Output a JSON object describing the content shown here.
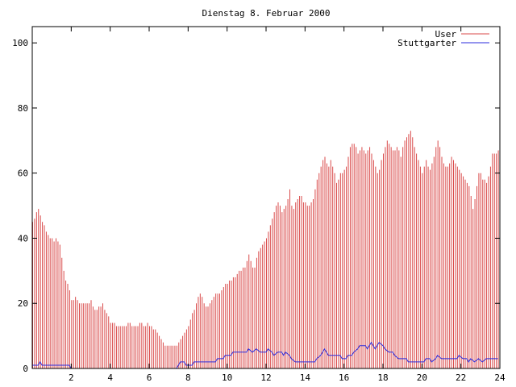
{
  "chart_data": {
    "type": "bar",
    "title": "Dienstag 8. Februar 2000",
    "xlabel": "",
    "ylabel": "",
    "xlim": [
      0,
      24
    ],
    "ylim": [
      0,
      105
    ],
    "x_ticks": [
      2,
      4,
      6,
      8,
      10,
      12,
      14,
      16,
      18,
      20,
      22,
      24
    ],
    "y_ticks": [
      0,
      20,
      40,
      60,
      80,
      100
    ],
    "grid": false,
    "legend_position": "top-right",
    "series": [
      {
        "name": "User",
        "type": "bar",
        "color": "#d94a4a",
        "points": [
          [
            0.0,
            45
          ],
          [
            0.1,
            46
          ],
          [
            0.2,
            48
          ],
          [
            0.3,
            49
          ],
          [
            0.4,
            47
          ],
          [
            0.5,
            45
          ],
          [
            0.6,
            44
          ],
          [
            0.7,
            42
          ],
          [
            0.8,
            41
          ],
          [
            0.9,
            40
          ],
          [
            1.0,
            40
          ],
          [
            1.1,
            39
          ],
          [
            1.2,
            40
          ],
          [
            1.3,
            39
          ],
          [
            1.4,
            38
          ],
          [
            1.5,
            34
          ],
          [
            1.6,
            30
          ],
          [
            1.7,
            27
          ],
          [
            1.8,
            26
          ],
          [
            1.9,
            24
          ],
          [
            2.0,
            21
          ],
          [
            2.1,
            21
          ],
          [
            2.2,
            22
          ],
          [
            2.3,
            21
          ],
          [
            2.4,
            20
          ],
          [
            2.5,
            20
          ],
          [
            2.6,
            20
          ],
          [
            2.7,
            20
          ],
          [
            2.8,
            20
          ],
          [
            2.9,
            20
          ],
          [
            3.0,
            21
          ],
          [
            3.1,
            19
          ],
          [
            3.2,
            18
          ],
          [
            3.3,
            18
          ],
          [
            3.4,
            19
          ],
          [
            3.5,
            19
          ],
          [
            3.6,
            20
          ],
          [
            3.7,
            18
          ],
          [
            3.8,
            17
          ],
          [
            3.9,
            16
          ],
          [
            4.0,
            14
          ],
          [
            4.1,
            14
          ],
          [
            4.2,
            14
          ],
          [
            4.3,
            13
          ],
          [
            4.4,
            13
          ],
          [
            4.5,
            13
          ],
          [
            4.6,
            13
          ],
          [
            4.7,
            13
          ],
          [
            4.8,
            13
          ],
          [
            4.9,
            14
          ],
          [
            5.0,
            14
          ],
          [
            5.1,
            13
          ],
          [
            5.2,
            13
          ],
          [
            5.3,
            13
          ],
          [
            5.4,
            13
          ],
          [
            5.5,
            14
          ],
          [
            5.6,
            14
          ],
          [
            5.7,
            13
          ],
          [
            5.8,
            13
          ],
          [
            5.9,
            14
          ],
          [
            6.0,
            13
          ],
          [
            6.1,
            13
          ],
          [
            6.2,
            12
          ],
          [
            6.3,
            12
          ],
          [
            6.4,
            11
          ],
          [
            6.5,
            10
          ],
          [
            6.6,
            9
          ],
          [
            6.7,
            8
          ],
          [
            6.8,
            7
          ],
          [
            6.9,
            7
          ],
          [
            7.0,
            7
          ],
          [
            7.1,
            7
          ],
          [
            7.2,
            7
          ],
          [
            7.3,
            7
          ],
          [
            7.4,
            7
          ],
          [
            7.5,
            8
          ],
          [
            7.6,
            9
          ],
          [
            7.7,
            10
          ],
          [
            7.8,
            11
          ],
          [
            7.9,
            12
          ],
          [
            8.0,
            13
          ],
          [
            8.1,
            15
          ],
          [
            8.2,
            17
          ],
          [
            8.3,
            18
          ],
          [
            8.4,
            20
          ],
          [
            8.5,
            22
          ],
          [
            8.6,
            23
          ],
          [
            8.7,
            22
          ],
          [
            8.8,
            20
          ],
          [
            8.9,
            19
          ],
          [
            9.0,
            19
          ],
          [
            9.1,
            20
          ],
          [
            9.2,
            21
          ],
          [
            9.3,
            22
          ],
          [
            9.4,
            23
          ],
          [
            9.5,
            23
          ],
          [
            9.6,
            23
          ],
          [
            9.7,
            24
          ],
          [
            9.8,
            25
          ],
          [
            9.9,
            26
          ],
          [
            10.0,
            26
          ],
          [
            10.1,
            27
          ],
          [
            10.2,
            27
          ],
          [
            10.3,
            28
          ],
          [
            10.4,
            28
          ],
          [
            10.5,
            29
          ],
          [
            10.6,
            30
          ],
          [
            10.7,
            30
          ],
          [
            10.8,
            31
          ],
          [
            10.9,
            31
          ],
          [
            11.0,
            33
          ],
          [
            11.1,
            35
          ],
          [
            11.2,
            33
          ],
          [
            11.3,
            31
          ],
          [
            11.4,
            31
          ],
          [
            11.5,
            34
          ],
          [
            11.6,
            36
          ],
          [
            11.7,
            37
          ],
          [
            11.8,
            38
          ],
          [
            11.9,
            39
          ],
          [
            12.0,
            40
          ],
          [
            12.1,
            42
          ],
          [
            12.2,
            44
          ],
          [
            12.3,
            46
          ],
          [
            12.4,
            48
          ],
          [
            12.5,
            50
          ],
          [
            12.6,
            51
          ],
          [
            12.7,
            50
          ],
          [
            12.8,
            48
          ],
          [
            12.9,
            49
          ],
          [
            13.0,
            50
          ],
          [
            13.1,
            52
          ],
          [
            13.2,
            55
          ],
          [
            13.3,
            50
          ],
          [
            13.4,
            49
          ],
          [
            13.5,
            51
          ],
          [
            13.6,
            52
          ],
          [
            13.7,
            53
          ],
          [
            13.8,
            53
          ],
          [
            13.9,
            51
          ],
          [
            14.0,
            51
          ],
          [
            14.1,
            50
          ],
          [
            14.2,
            50
          ],
          [
            14.3,
            51
          ],
          [
            14.4,
            52
          ],
          [
            14.5,
            55
          ],
          [
            14.6,
            58
          ],
          [
            14.7,
            60
          ],
          [
            14.8,
            62
          ],
          [
            14.9,
            64
          ],
          [
            15.0,
            65
          ],
          [
            15.1,
            63
          ],
          [
            15.2,
            62
          ],
          [
            15.3,
            64
          ],
          [
            15.4,
            62
          ],
          [
            15.5,
            60
          ],
          [
            15.6,
            57
          ],
          [
            15.7,
            58
          ],
          [
            15.8,
            60
          ],
          [
            15.9,
            60
          ],
          [
            16.0,
            61
          ],
          [
            16.1,
            62
          ],
          [
            16.2,
            65
          ],
          [
            16.3,
            68
          ],
          [
            16.4,
            69
          ],
          [
            16.5,
            69
          ],
          [
            16.6,
            68
          ],
          [
            16.7,
            66
          ],
          [
            16.8,
            67
          ],
          [
            16.9,
            68
          ],
          [
            17.0,
            67
          ],
          [
            17.1,
            66
          ],
          [
            17.2,
            67
          ],
          [
            17.3,
            68
          ],
          [
            17.4,
            66
          ],
          [
            17.5,
            64
          ],
          [
            17.6,
            62
          ],
          [
            17.7,
            60
          ],
          [
            17.8,
            61
          ],
          [
            17.9,
            64
          ],
          [
            18.0,
            66
          ],
          [
            18.1,
            68
          ],
          [
            18.2,
            70
          ],
          [
            18.3,
            69
          ],
          [
            18.4,
            68
          ],
          [
            18.5,
            67
          ],
          [
            18.6,
            67
          ],
          [
            18.7,
            68
          ],
          [
            18.8,
            67
          ],
          [
            18.9,
            65
          ],
          [
            19.0,
            68
          ],
          [
            19.1,
            70
          ],
          [
            19.2,
            71
          ],
          [
            19.3,
            72
          ],
          [
            19.4,
            73
          ],
          [
            19.5,
            71
          ],
          [
            19.6,
            68
          ],
          [
            19.7,
            66
          ],
          [
            19.8,
            64
          ],
          [
            19.9,
            62
          ],
          [
            20.0,
            60
          ],
          [
            20.1,
            62
          ],
          [
            20.2,
            64
          ],
          [
            20.3,
            62
          ],
          [
            20.4,
            61
          ],
          [
            20.5,
            63
          ],
          [
            20.6,
            65
          ],
          [
            20.7,
            68
          ],
          [
            20.8,
            70
          ],
          [
            20.9,
            68
          ],
          [
            21.0,
            65
          ],
          [
            21.1,
            63
          ],
          [
            21.2,
            62
          ],
          [
            21.3,
            62
          ],
          [
            21.4,
            63
          ],
          [
            21.5,
            65
          ],
          [
            21.6,
            64
          ],
          [
            21.7,
            63
          ],
          [
            21.8,
            62
          ],
          [
            21.9,
            61
          ],
          [
            22.0,
            60
          ],
          [
            22.1,
            59
          ],
          [
            22.2,
            58
          ],
          [
            22.3,
            57
          ],
          [
            22.4,
            56
          ],
          [
            22.5,
            53
          ],
          [
            22.6,
            49
          ],
          [
            22.7,
            52
          ],
          [
            22.8,
            56
          ],
          [
            22.9,
            60
          ],
          [
            23.0,
            60
          ],
          [
            23.1,
            58
          ],
          [
            23.2,
            58
          ],
          [
            23.3,
            57
          ],
          [
            23.4,
            59
          ],
          [
            23.5,
            62
          ],
          [
            23.6,
            66
          ],
          [
            23.7,
            66
          ],
          [
            23.8,
            66
          ],
          [
            23.9,
            67
          ]
        ]
      },
      {
        "name": "Stuttgarter",
        "type": "line",
        "color": "#2b2bdd",
        "points": [
          [
            0.0,
            1
          ],
          [
            0.3,
            1
          ],
          [
            0.4,
            2
          ],
          [
            0.5,
            1
          ],
          [
            1.0,
            1
          ],
          [
            1.9,
            1
          ],
          [
            2.0,
            0
          ],
          [
            7.4,
            0
          ],
          [
            7.5,
            1
          ],
          [
            7.6,
            2
          ],
          [
            7.8,
            2
          ],
          [
            7.9,
            1
          ],
          [
            8.2,
            1
          ],
          [
            8.3,
            2
          ],
          [
            9.4,
            2
          ],
          [
            9.5,
            3
          ],
          [
            9.8,
            3
          ],
          [
            9.9,
            4
          ],
          [
            10.2,
            4
          ],
          [
            10.3,
            5
          ],
          [
            11.0,
            5
          ],
          [
            11.1,
            6
          ],
          [
            11.3,
            5
          ],
          [
            11.5,
            6
          ],
          [
            11.7,
            5
          ],
          [
            12.0,
            5
          ],
          [
            12.1,
            6
          ],
          [
            12.3,
            5
          ],
          [
            12.4,
            4
          ],
          [
            12.6,
            5
          ],
          [
            12.8,
            5
          ],
          [
            12.9,
            4
          ],
          [
            13.0,
            5
          ],
          [
            13.2,
            4
          ],
          [
            13.3,
            3
          ],
          [
            13.5,
            2
          ],
          [
            14.5,
            2
          ],
          [
            14.6,
            3
          ],
          [
            14.8,
            4
          ],
          [
            14.9,
            5
          ],
          [
            15.0,
            6
          ],
          [
            15.1,
            5
          ],
          [
            15.2,
            4
          ],
          [
            15.8,
            4
          ],
          [
            15.9,
            3
          ],
          [
            16.1,
            3
          ],
          [
            16.2,
            4
          ],
          [
            16.4,
            4
          ],
          [
            16.5,
            5
          ],
          [
            16.7,
            6
          ],
          [
            16.8,
            7
          ],
          [
            17.1,
            7
          ],
          [
            17.2,
            6
          ],
          [
            17.3,
            7
          ],
          [
            17.4,
            8
          ],
          [
            17.5,
            7
          ],
          [
            17.6,
            6
          ],
          [
            17.7,
            7
          ],
          [
            17.8,
            8
          ],
          [
            18.0,
            7
          ],
          [
            18.1,
            6
          ],
          [
            18.3,
            5
          ],
          [
            18.5,
            5
          ],
          [
            18.6,
            4
          ],
          [
            18.8,
            3
          ],
          [
            19.2,
            3
          ],
          [
            19.3,
            2
          ],
          [
            20.1,
            2
          ],
          [
            20.2,
            3
          ],
          [
            20.4,
            3
          ],
          [
            20.5,
            2
          ],
          [
            20.7,
            3
          ],
          [
            20.8,
            4
          ],
          [
            21.0,
            3
          ],
          [
            21.8,
            3
          ],
          [
            21.9,
            4
          ],
          [
            22.1,
            3
          ],
          [
            22.3,
            3
          ],
          [
            22.4,
            2
          ],
          [
            22.5,
            3
          ],
          [
            22.7,
            2
          ],
          [
            22.9,
            3
          ],
          [
            23.1,
            2
          ],
          [
            23.3,
            3
          ],
          [
            23.9,
            3
          ]
        ]
      }
    ]
  }
}
